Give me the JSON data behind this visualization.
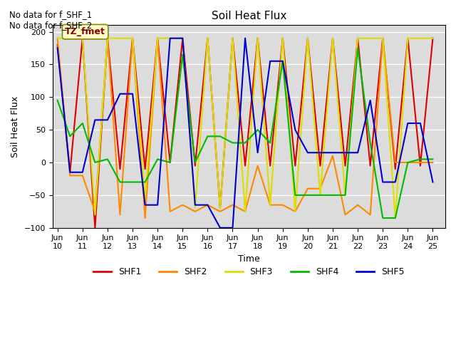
{
  "title": "Soil Heat Flux",
  "xlabel": "Time",
  "ylabel": "Soil Heat Flux",
  "ylim": [
    -100,
    210
  ],
  "yticks": [
    -100,
    -50,
    0,
    50,
    100,
    150,
    200
  ],
  "annotation_text": "No data for f_SHF_1\nNo data for f_SHF_2",
  "legend_label": "TZ_fmet",
  "legend_box_color": "#FFFFCC",
  "legend_text_color": "#8B0000",
  "background_color": "#DCDCDC",
  "series_colors": {
    "SHF1": "#DD0000",
    "SHF2": "#FF8800",
    "SHF3": "#DDDD00",
    "SHF4": "#00BB00",
    "SHF5": "#0000CC"
  },
  "xtick_labels": [
    "Jun\n10",
    "Jun\n11",
    "Jun\n12",
    "Jun\n13",
    "Jun\n14",
    "Jun\n15",
    "Jun\n16",
    "Jun\n17",
    "Jun\n18",
    "Jun\n19",
    "Jun\n20",
    "Jun\n21",
    "Jun\n22",
    "Jun\n23",
    "Jun\n24",
    "Jun\n25"
  ],
  "SHF1_x": [
    0,
    0.5,
    1,
    1.5,
    2,
    2.5,
    3,
    3.5,
    4,
    4.5,
    5,
    5.5,
    6,
    6.5,
    7,
    7.5,
    8,
    8.5,
    9,
    9.5,
    10,
    10.5,
    11,
    11.5,
    12,
    12.5,
    13,
    13.5,
    14,
    14.5,
    15
  ],
  "SHF1_y": [
    180,
    -15,
    190,
    -100,
    190,
    -10,
    190,
    -10,
    190,
    0,
    190,
    -5,
    190,
    -70,
    190,
    -5,
    190,
    -5,
    190,
    -5,
    190,
    -5,
    190,
    -5,
    190,
    -5,
    190,
    -10,
    190,
    -5,
    190
  ],
  "SHF2_x": [
    0,
    0.5,
    1,
    1.5,
    2,
    2.5,
    3,
    3.5,
    4,
    4.5,
    5,
    5.5,
    6,
    6.5,
    7,
    7.5,
    8,
    8.5,
    9,
    9.5,
    10,
    10.5,
    11,
    11.5,
    12,
    12.5,
    13,
    13.5,
    14,
    14.5,
    15
  ],
  "SHF2_y": [
    190,
    -20,
    -20,
    -75,
    190,
    -80,
    190,
    -85,
    190,
    -75,
    -65,
    -75,
    -65,
    -75,
    -65,
    -75,
    -5,
    -65,
    -65,
    -75,
    -40,
    -40,
    10,
    -80,
    -65,
    -80,
    190,
    0,
    0,
    0,
    0
  ],
  "SHF3_x": [
    0,
    0.5,
    1,
    1.5,
    2,
    2.5,
    3,
    3.5,
    4,
    4.5,
    5,
    5.5,
    6,
    6.5,
    7,
    7.5,
    8,
    8.5,
    9,
    9.5,
    10,
    10.5,
    11,
    11.5,
    12,
    12.5,
    13,
    13.5,
    14,
    14.5,
    15
  ],
  "SHF3_y": [
    190,
    190,
    190,
    -80,
    190,
    190,
    190,
    -55,
    190,
    190,
    190,
    -70,
    190,
    -70,
    190,
    -75,
    190,
    -65,
    190,
    -75,
    190,
    -50,
    190,
    -50,
    190,
    190,
    190,
    -85,
    190,
    190,
    190
  ],
  "SHF4_x": [
    0,
    0.5,
    1,
    1.5,
    2,
    2.5,
    3,
    3.5,
    4,
    4.5,
    5,
    5.5,
    6,
    6.5,
    7,
    7.5,
    8,
    8.5,
    9,
    9.5,
    10,
    10.5,
    11,
    11.5,
    12,
    12.5,
    13,
    13.5,
    14,
    14.5,
    15
  ],
  "SHF4_y": [
    95,
    40,
    60,
    0,
    5,
    -30,
    -30,
    -30,
    5,
    0,
    165,
    0,
    40,
    40,
    30,
    30,
    50,
    30,
    155,
    -50,
    -50,
    -50,
    -50,
    -50,
    175,
    30,
    -85,
    -85,
    0,
    5,
    5
  ],
  "SHF5_x": [
    0,
    0.5,
    1,
    1.5,
    2,
    2.5,
    3,
    3.5,
    4,
    4.5,
    5,
    5.5,
    6,
    6.5,
    7,
    7.5,
    8,
    8.5,
    9,
    9.5,
    10,
    10.5,
    11,
    11.5,
    12,
    12.5,
    13,
    13.5,
    14,
    14.5,
    15
  ],
  "SHF5_y": [
    175,
    -15,
    -15,
    65,
    65,
    105,
    105,
    -65,
    -65,
    190,
    190,
    -65,
    -65,
    -100,
    -100,
    190,
    15,
    155,
    155,
    50,
    15,
    15,
    15,
    15,
    15,
    95,
    -30,
    -30,
    60,
    60,
    -30
  ]
}
